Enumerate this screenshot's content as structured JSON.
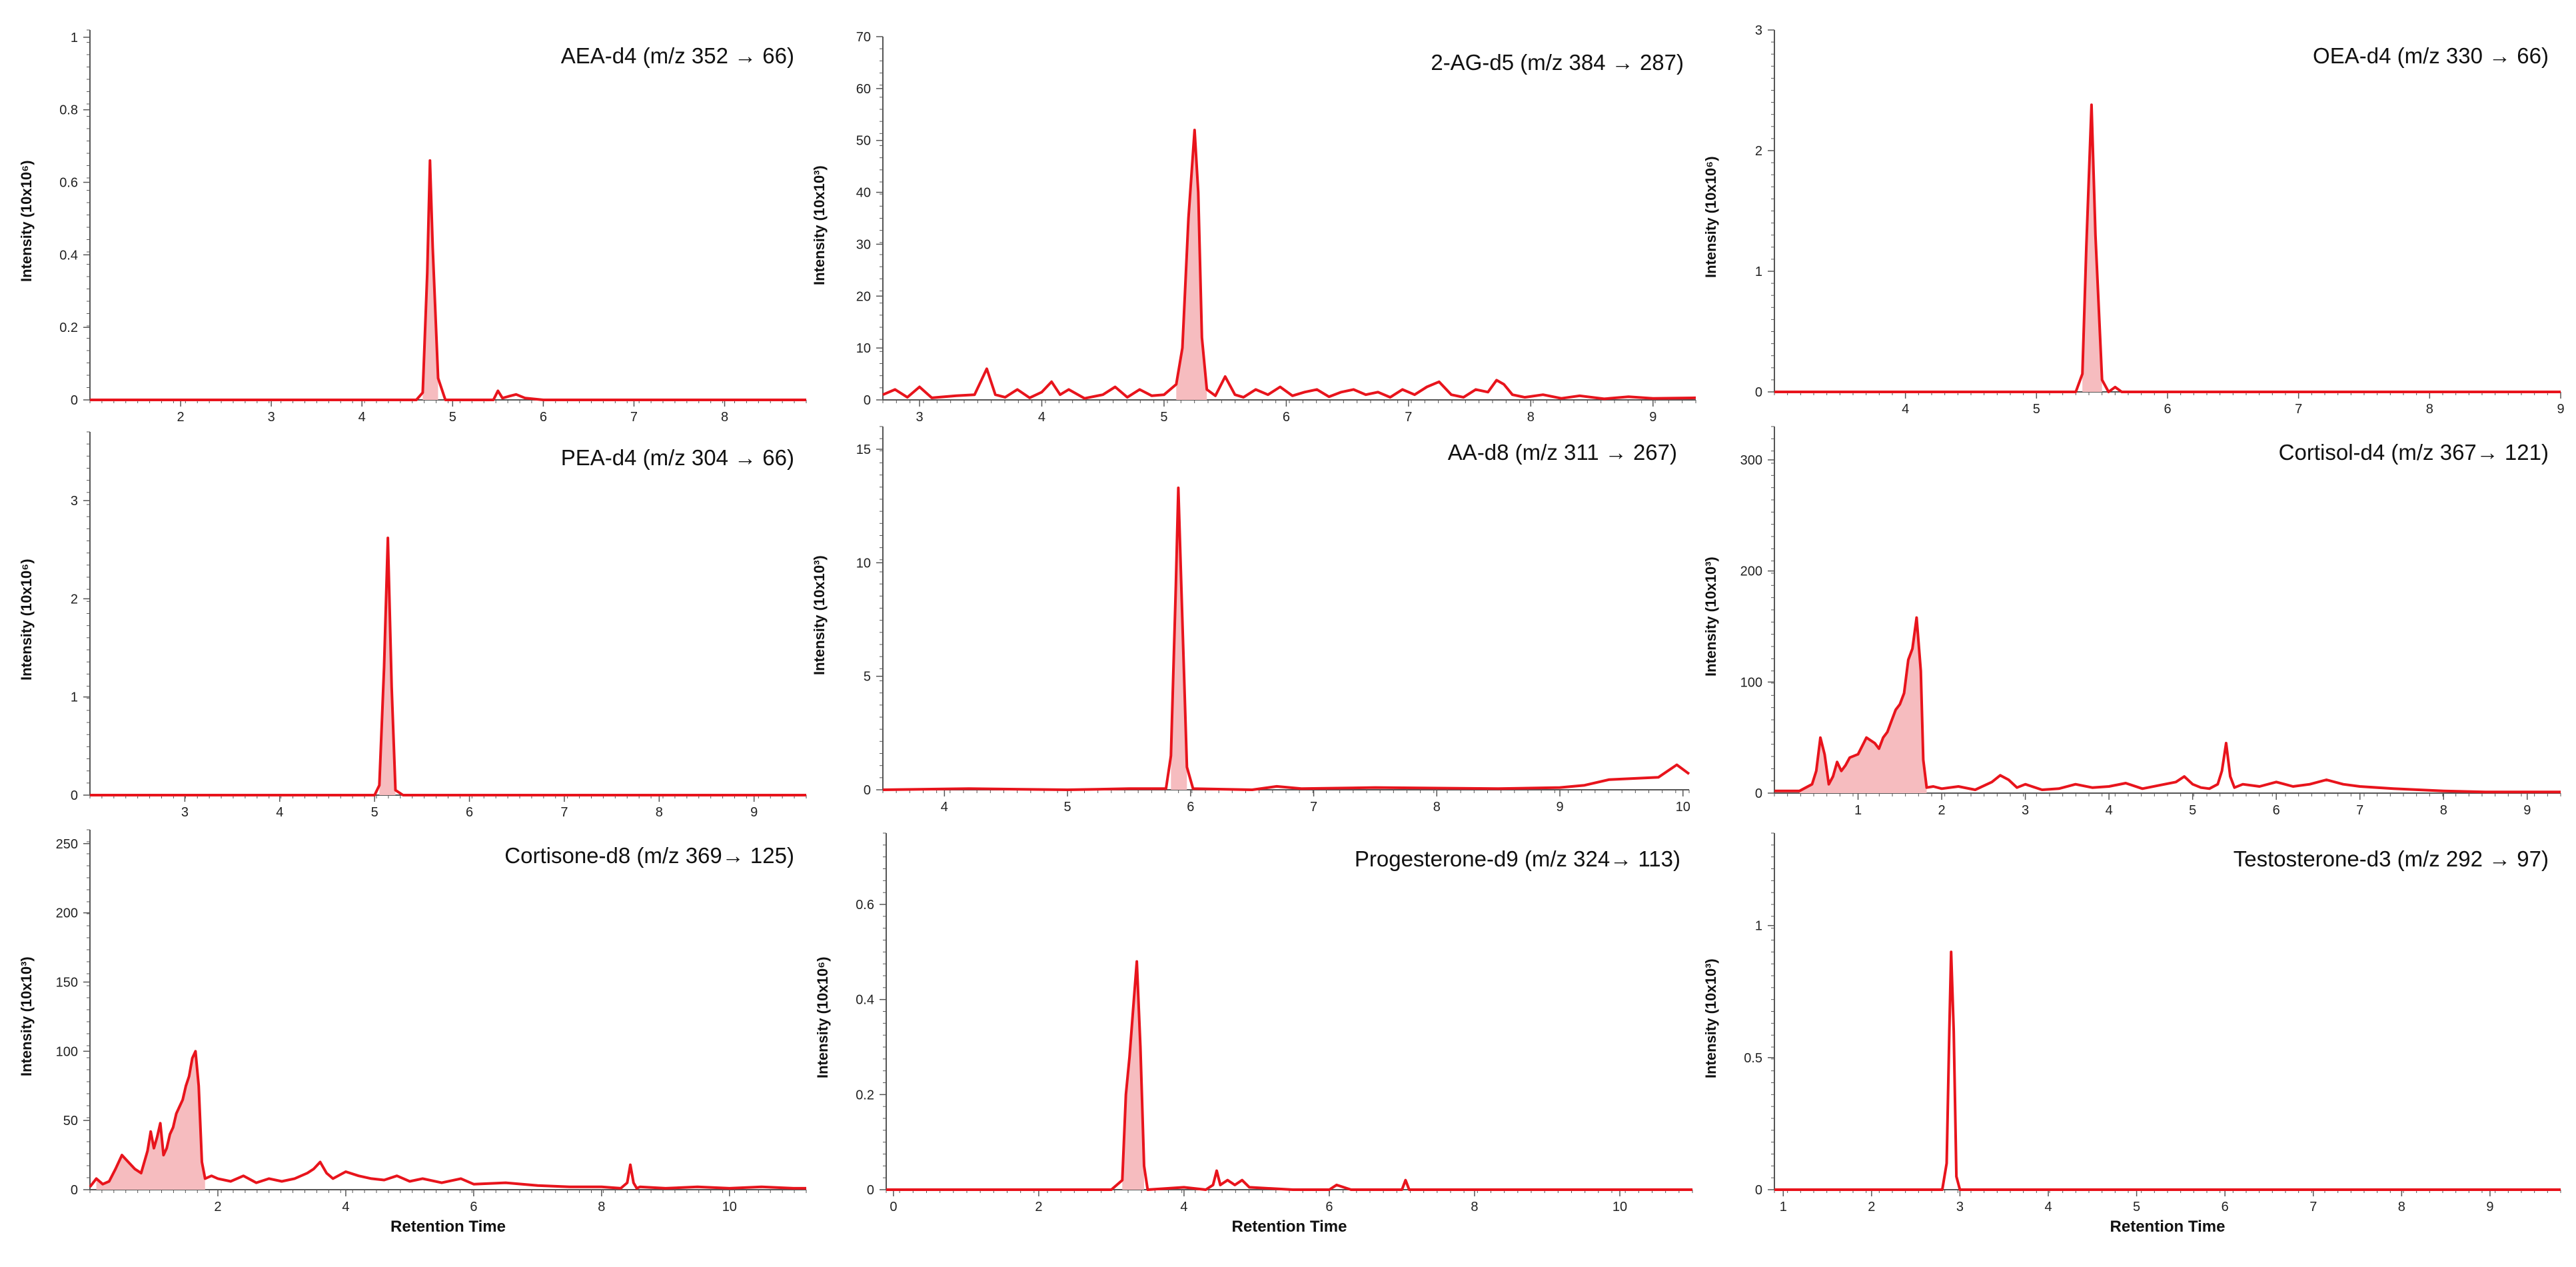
{
  "colors": {
    "trace": "#e8141c",
    "fill": "#f6bcbf",
    "axis": "#555555",
    "text": "#111111"
  },
  "chart_data": [
    {
      "type": "line",
      "title": "AEA-d4 (m/z 352 → 66)",
      "ylabel": "Intensity (10x10⁶)",
      "xlabel": "",
      "xlim": [
        1.0,
        8.9
      ],
      "ylim": [
        0,
        1.02
      ],
      "xticks": [
        "2",
        "3",
        "4",
        "5",
        "6",
        "7",
        "8"
      ],
      "yticks": [
        "0",
        "0.2",
        "0.4",
        "0.6",
        "0.8",
        "1"
      ],
      "x": [
        1.0,
        4.6,
        4.67,
        4.72,
        4.75,
        4.78,
        4.84,
        4.92,
        5.2,
        5.45,
        5.5,
        5.55,
        5.62,
        5.7,
        5.8,
        6.0,
        8.9
      ],
      "y": [
        0.0,
        0.0,
        0.02,
        0.35,
        0.66,
        0.42,
        0.06,
        0.0,
        0.0,
        0.0,
        0.025,
        0.005,
        0.01,
        0.015,
        0.005,
        0.0,
        0.0
      ],
      "peaks": [
        [
          4.66,
          4.9
        ]
      ]
    },
    {
      "type": "line",
      "title": "2-AG-d5 (m/z 384 → 287)",
      "ylabel": "Intensity (10x10³)",
      "xlabel": "",
      "xlim": [
        2.7,
        9.35
      ],
      "ylim": [
        0,
        70
      ],
      "xticks": [
        "3",
        "4",
        "5",
        "6",
        "7",
        "8",
        "9"
      ],
      "yticks": [
        "0",
        "10",
        "20",
        "30",
        "40",
        "50",
        "60",
        "70"
      ],
      "x": [
        2.7,
        2.8,
        2.9,
        3.0,
        3.1,
        3.3,
        3.45,
        3.55,
        3.62,
        3.7,
        3.8,
        3.9,
        4.0,
        4.08,
        4.15,
        4.22,
        4.35,
        4.5,
        4.6,
        4.7,
        4.8,
        4.9,
        5.0,
        5.1,
        5.15,
        5.2,
        5.25,
        5.28,
        5.31,
        5.35,
        5.42,
        5.5,
        5.58,
        5.65,
        5.75,
        5.85,
        5.95,
        6.05,
        6.15,
        6.25,
        6.35,
        6.45,
        6.55,
        6.65,
        6.75,
        6.85,
        6.95,
        7.05,
        7.15,
        7.25,
        7.35,
        7.45,
        7.55,
        7.65,
        7.72,
        7.78,
        7.85,
        7.95,
        8.1,
        8.25,
        8.4,
        8.6,
        8.8,
        9.0,
        9.35
      ],
      "y": [
        1.0,
        2.0,
        0.5,
        2.5,
        0.4,
        0.8,
        1.0,
        6.0,
        1.0,
        0.5,
        2.0,
        0.4,
        1.5,
        3.5,
        1.0,
        2.0,
        0.3,
        1.0,
        2.5,
        0.5,
        2.0,
        0.8,
        1.0,
        3.0,
        10.0,
        35.0,
        52.0,
        40.0,
        12.0,
        2.0,
        0.8,
        4.5,
        1.0,
        0.5,
        2.0,
        1.0,
        2.5,
        0.8,
        1.5,
        2.0,
        0.6,
        1.5,
        2.0,
        1.0,
        1.5,
        0.5,
        2.0,
        1.0,
        2.5,
        3.5,
        1.0,
        0.5,
        2.0,
        1.5,
        3.8,
        3.0,
        1.0,
        0.5,
        1.0,
        0.3,
        0.8,
        0.2,
        0.6,
        0.3,
        0.4
      ],
      "peaks": [
        [
          5.08,
          5.36
        ]
      ]
    },
    {
      "type": "line",
      "title": "OEA-d4 (m/z 330 → 66)",
      "ylabel": "Intensity (10x10⁶)",
      "xlabel": "",
      "xlim": [
        3.0,
        9.0
      ],
      "ylim": [
        0,
        3.0
      ],
      "xticks": [
        "4",
        "5",
        "6",
        "7",
        "8",
        "9"
      ],
      "yticks": [
        "0",
        "1",
        "2",
        "3"
      ],
      "x": [
        3.0,
        5.3,
        5.35,
        5.38,
        5.42,
        5.45,
        5.5,
        5.55,
        5.6,
        5.65,
        5.7,
        9.0
      ],
      "y": [
        0.0,
        0.0,
        0.15,
        1.2,
        2.38,
        1.3,
        0.1,
        0.0,
        0.04,
        0.0,
        0.0,
        0.0
      ],
      "peaks": [
        [
          5.33,
          5.52
        ]
      ]
    },
    {
      "type": "line",
      "title": "PEA-d4 (m/z 304 → 66)",
      "ylabel": "Intensity (10x10⁶)",
      "xlabel": "",
      "xlim": [
        2.0,
        9.55
      ],
      "ylim": [
        0,
        3.7
      ],
      "xticks": [
        "3",
        "4",
        "5",
        "6",
        "7",
        "8",
        "9"
      ],
      "xtick_values": [
        3,
        4,
        5,
        6,
        7,
        8,
        9
      ],
      "yticks": [
        "0",
        "1",
        "2",
        "3"
      ],
      "x": [
        2.0,
        5.0,
        5.05,
        5.1,
        5.14,
        5.18,
        5.22,
        5.3,
        9.55
      ],
      "y": [
        0.0,
        0.0,
        0.1,
        1.3,
        2.62,
        1.1,
        0.05,
        0.0,
        0.0
      ],
      "peaks": [
        [
          5.03,
          5.24
        ]
      ]
    },
    {
      "type": "line",
      "title": "AA-d8 (m/z 311 → 267)",
      "ylabel": "Intensity (10x10³)",
      "xlabel": "",
      "xlim": [
        3.5,
        10.05
      ],
      "ylim": [
        0,
        16
      ],
      "xticks": [
        "4",
        "5",
        "6",
        "7",
        "8",
        "9",
        "10"
      ],
      "yticks": [
        "0",
        "5",
        "10",
        "15"
      ],
      "x": [
        3.5,
        4.2,
        5.0,
        5.5,
        5.8,
        5.84,
        5.88,
        5.9,
        5.93,
        5.97,
        6.02,
        6.5,
        6.7,
        6.9,
        7.5,
        8.5,
        9.0,
        9.2,
        9.4,
        9.6,
        9.8,
        9.95,
        10.05
      ],
      "y": [
        0.0,
        0.05,
        0.0,
        0.05,
        0.05,
        1.5,
        9.0,
        13.3,
        8.0,
        1.0,
        0.05,
        0.0,
        0.15,
        0.05,
        0.1,
        0.05,
        0.1,
        0.2,
        0.45,
        0.5,
        0.55,
        1.1,
        0.7
      ],
      "peaks": [
        [
          5.82,
          6.0
        ]
      ]
    },
    {
      "type": "line",
      "title": "Cortisol-d4 (m/z 367→ 121)",
      "ylabel": "Intensity (10x10³)",
      "xlabel": "",
      "xlim": [
        0.0,
        9.4
      ],
      "ylim": [
        0,
        330
      ],
      "xticks": [
        "1",
        "2",
        "3",
        "4",
        "5",
        "6",
        "7",
        "8",
        "9"
      ],
      "yticks": [
        "0",
        "100",
        "200",
        "300"
      ],
      "x": [
        0.0,
        0.3,
        0.45,
        0.5,
        0.55,
        0.6,
        0.65,
        0.7,
        0.75,
        0.8,
        0.85,
        0.9,
        1.0,
        1.1,
        1.2,
        1.25,
        1.3,
        1.35,
        1.4,
        1.45,
        1.5,
        1.55,
        1.6,
        1.65,
        1.7,
        1.75,
        1.78,
        1.82,
        1.9,
        2.0,
        2.2,
        2.4,
        2.6,
        2.7,
        2.8,
        2.9,
        3.0,
        3.2,
        3.4,
        3.6,
        3.8,
        4.0,
        4.2,
        4.4,
        4.6,
        4.8,
        4.9,
        5.0,
        5.1,
        5.2,
        5.3,
        5.35,
        5.4,
        5.45,
        5.5,
        5.6,
        5.8,
        6.0,
        6.2,
        6.4,
        6.6,
        6.8,
        7.0,
        7.4,
        8.0,
        8.5,
        9.4
      ],
      "y": [
        2.0,
        2.0,
        8.0,
        20.0,
        50.0,
        35.0,
        8.0,
        15.0,
        28.0,
        20.0,
        25.0,
        32.0,
        35.0,
        50.0,
        45.0,
        40.0,
        50.0,
        55.0,
        65.0,
        75.0,
        80.0,
        90.0,
        120.0,
        130.0,
        158.0,
        110.0,
        30.0,
        5.0,
        6.0,
        4.0,
        6.0,
        3.0,
        10.0,
        16.0,
        12.0,
        5.0,
        8.0,
        3.0,
        4.0,
        8.0,
        5.0,
        6.0,
        9.0,
        4.0,
        7.0,
        10.0,
        15.0,
        8.0,
        5.0,
        4.0,
        8.0,
        20.0,
        45.0,
        15.0,
        5.0,
        8.0,
        6.0,
        10.0,
        6.0,
        8.0,
        12.0,
        8.0,
        6.0,
        4.0,
        2.0,
        1.0,
        1.0
      ],
      "peaks": [
        [
          0.3,
          1.85
        ]
      ]
    },
    {
      "type": "line",
      "title": "Cortisone-d8 (m/z 369→ 125)",
      "ylabel": "Intensity (10x10³)",
      "xlabel": "Retention Time",
      "xlim": [
        0.0,
        11.2
      ],
      "ylim": [
        0,
        260
      ],
      "xticks": [
        "2",
        "4",
        "6",
        "8",
        "10"
      ],
      "yticks": [
        "0",
        "50",
        "100",
        "150",
        "200",
        "250"
      ],
      "x": [
        0.0,
        0.1,
        0.2,
        0.3,
        0.4,
        0.5,
        0.6,
        0.7,
        0.8,
        0.9,
        0.95,
        1.0,
        1.05,
        1.1,
        1.15,
        1.2,
        1.25,
        1.3,
        1.35,
        1.4,
        1.45,
        1.5,
        1.55,
        1.6,
        1.65,
        1.7,
        1.75,
        1.8,
        1.9,
        2.0,
        2.2,
        2.4,
        2.6,
        2.8,
        3.0,
        3.2,
        3.4,
        3.5,
        3.6,
        3.7,
        3.8,
        4.0,
        4.2,
        4.4,
        4.6,
        4.8,
        5.0,
        5.2,
        5.5,
        5.8,
        6.0,
        6.5,
        7.0,
        7.5,
        8.0,
        8.3,
        8.4,
        8.45,
        8.5,
        8.55,
        8.6,
        9.0,
        9.5,
        10.0,
        10.5,
        11.0,
        11.2
      ],
      "y": [
        2.0,
        8.0,
        4.0,
        6.0,
        15.0,
        25.0,
        20.0,
        15.0,
        12.0,
        28.0,
        42.0,
        30.0,
        38.0,
        48.0,
        25.0,
        30.0,
        40.0,
        45.0,
        55.0,
        60.0,
        65.0,
        75.0,
        82.0,
        95.0,
        100.0,
        75.0,
        20.0,
        8.0,
        10.0,
        8.0,
        6.0,
        10.0,
        5.0,
        8.0,
        6.0,
        8.0,
        12.0,
        15.0,
        20.0,
        12.0,
        8.0,
        13.0,
        10.0,
        8.0,
        7.0,
        10.0,
        6.0,
        8.0,
        5.0,
        8.0,
        4.0,
        5.0,
        3.0,
        2.0,
        2.0,
        1.0,
        5.0,
        18.0,
        5.0,
        1.0,
        2.0,
        1.0,
        2.0,
        1.0,
        2.0,
        1.0,
        1.0
      ],
      "peaks": [
        [
          0.1,
          1.8
        ]
      ]
    },
    {
      "type": "line",
      "title": "Progesterone-d9 (m/z 324→ 113)",
      "ylabel": "Intensity (10x10⁶)",
      "xlabel": "Retention Time",
      "xlim": [
        -0.1,
        11.0
      ],
      "ylim": [
        0,
        0.75
      ],
      "xticks": [
        "0",
        "2",
        "4",
        "6",
        "8",
        "10"
      ],
      "yticks": [
        "0",
        "0.2",
        "0.4",
        "0.6"
      ],
      "x": [
        -0.1,
        3.0,
        3.15,
        3.2,
        3.25,
        3.3,
        3.35,
        3.4,
        3.45,
        3.5,
        4.0,
        4.3,
        4.4,
        4.45,
        4.5,
        4.6,
        4.7,
        4.8,
        4.9,
        5.5,
        6.0,
        6.1,
        6.3,
        7.0,
        7.05,
        7.1,
        7.5,
        8.0,
        11.0
      ],
      "y": [
        0.0,
        0.0,
        0.02,
        0.2,
        0.28,
        0.38,
        0.48,
        0.3,
        0.05,
        0.0,
        0.005,
        0.0,
        0.01,
        0.04,
        0.01,
        0.02,
        0.01,
        0.02,
        0.005,
        0.0,
        0.0,
        0.01,
        0.0,
        0.0,
        0.02,
        0.0,
        0.0,
        0.0,
        0.0
      ],
      "peaks": [
        [
          3.1,
          3.48
        ]
      ]
    },
    {
      "type": "line",
      "title": "Testosterone-d3 (m/z 292 → 97)",
      "ylabel": "Intensity (10x10³)",
      "xlabel": "Retention Time",
      "xlim": [
        0.9,
        9.8
      ],
      "ylim": [
        0,
        1.35
      ],
      "xticks": [
        "1",
        "2",
        "3",
        "4",
        "5",
        "6",
        "7",
        "8",
        "9"
      ],
      "yticks": [
        "0",
        "0.5",
        "1"
      ],
      "x": [
        0.9,
        2.8,
        2.85,
        2.88,
        2.9,
        2.93,
        2.96,
        3.0,
        9.8
      ],
      "y": [
        0.0,
        0.0,
        0.1,
        0.6,
        0.9,
        0.6,
        0.05,
        0.0,
        0.0
      ],
      "peaks": []
    }
  ]
}
